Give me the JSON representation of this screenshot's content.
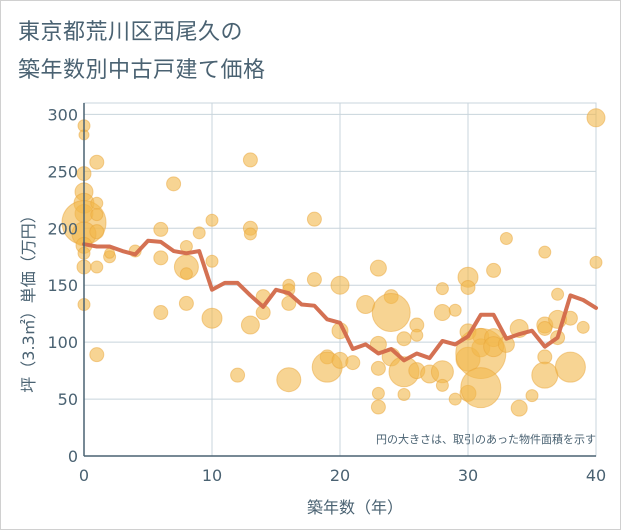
{
  "title_line1": "東京都荒川区西尾久の",
  "title_line2": "築年数別中古戸建て価格",
  "chart_data": {
    "type": "scatter",
    "xlabel": "築年数（年）",
    "ylabel": "坪（3.3㎡）単価（万円）",
    "xlim": [
      0,
      40
    ],
    "ylim": [
      0,
      310
    ],
    "xticks": [
      0,
      10,
      20,
      30,
      40
    ],
    "yticks": [
      0,
      50,
      100,
      150,
      200,
      250,
      300
    ],
    "grid": true,
    "note": "円の大きさは、取引のあった物件面積を示す",
    "colors": {
      "bubble": "#f2b84b",
      "line": "#d2694a",
      "axis": "#4a6272",
      "grid": "#c8d4dc"
    },
    "bubbles": [
      {
        "x": 0,
        "y": 290,
        "r": 6
      },
      {
        "x": 0,
        "y": 282,
        "r": 5
      },
      {
        "x": 0,
        "y": 248,
        "r": 7
      },
      {
        "x": 0,
        "y": 232,
        "r": 9
      },
      {
        "x": 0,
        "y": 222,
        "r": 10
      },
      {
        "x": 0,
        "y": 213,
        "r": 9
      },
      {
        "x": 0,
        "y": 205,
        "r": 22
      },
      {
        "x": 0,
        "y": 195,
        "r": 12
      },
      {
        "x": 0,
        "y": 185,
        "r": 8
      },
      {
        "x": 0,
        "y": 178,
        "r": 6
      },
      {
        "x": 0,
        "y": 166,
        "r": 7
      },
      {
        "x": 0,
        "y": 133,
        "r": 6
      },
      {
        "x": 1,
        "y": 258,
        "r": 7
      },
      {
        "x": 1,
        "y": 222,
        "r": 6
      },
      {
        "x": 1,
        "y": 212,
        "r": 6
      },
      {
        "x": 1,
        "y": 197,
        "r": 7
      },
      {
        "x": 1,
        "y": 166,
        "r": 6
      },
      {
        "x": 1,
        "y": 89,
        "r": 7
      },
      {
        "x": 2,
        "y": 175,
        "r": 6
      },
      {
        "x": 2,
        "y": 178,
        "r": 5
      },
      {
        "x": 4,
        "y": 180,
        "r": 6
      },
      {
        "x": 6,
        "y": 199,
        "r": 7
      },
      {
        "x": 6,
        "y": 174,
        "r": 7
      },
      {
        "x": 6,
        "y": 126,
        "r": 7
      },
      {
        "x": 7,
        "y": 239,
        "r": 7
      },
      {
        "x": 8,
        "y": 184,
        "r": 6
      },
      {
        "x": 8,
        "y": 166,
        "r": 12
      },
      {
        "x": 8,
        "y": 160,
        "r": 6
      },
      {
        "x": 8,
        "y": 134,
        "r": 7
      },
      {
        "x": 9,
        "y": 196,
        "r": 6
      },
      {
        "x": 10,
        "y": 207,
        "r": 6
      },
      {
        "x": 10,
        "y": 171,
        "r": 6
      },
      {
        "x": 10,
        "y": 121,
        "r": 10
      },
      {
        "x": 12,
        "y": 71,
        "r": 7
      },
      {
        "x": 13,
        "y": 260,
        "r": 7
      },
      {
        "x": 13,
        "y": 200,
        "r": 7
      },
      {
        "x": 13,
        "y": 195,
        "r": 6
      },
      {
        "x": 13,
        "y": 115,
        "r": 9
      },
      {
        "x": 14,
        "y": 140,
        "r": 7
      },
      {
        "x": 14,
        "y": 126,
        "r": 7
      },
      {
        "x": 16,
        "y": 150,
        "r": 6
      },
      {
        "x": 16,
        "y": 146,
        "r": 6
      },
      {
        "x": 16,
        "y": 134,
        "r": 7
      },
      {
        "x": 16,
        "y": 67,
        "r": 12
      },
      {
        "x": 18,
        "y": 208,
        "r": 7
      },
      {
        "x": 18,
        "y": 155,
        "r": 7
      },
      {
        "x": 19,
        "y": 87,
        "r": 7
      },
      {
        "x": 19,
        "y": 78,
        "r": 15
      },
      {
        "x": 20,
        "y": 150,
        "r": 9
      },
      {
        "x": 20,
        "y": 110,
        "r": 8
      },
      {
        "x": 20,
        "y": 84,
        "r": 8
      },
      {
        "x": 21,
        "y": 82,
        "r": 7
      },
      {
        "x": 22,
        "y": 133,
        "r": 9
      },
      {
        "x": 23,
        "y": 165,
        "r": 8
      },
      {
        "x": 23,
        "y": 98,
        "r": 8
      },
      {
        "x": 23,
        "y": 77,
        "r": 7
      },
      {
        "x": 23,
        "y": 55,
        "r": 6
      },
      {
        "x": 23,
        "y": 43,
        "r": 7
      },
      {
        "x": 24,
        "y": 140,
        "r": 7
      },
      {
        "x": 24,
        "y": 126,
        "r": 19
      },
      {
        "x": 24,
        "y": 87,
        "r": 9
      },
      {
        "x": 25,
        "y": 103,
        "r": 7
      },
      {
        "x": 25,
        "y": 74,
        "r": 15
      },
      {
        "x": 25,
        "y": 54,
        "r": 6
      },
      {
        "x": 26,
        "y": 115,
        "r": 7
      },
      {
        "x": 26,
        "y": 106,
        "r": 6
      },
      {
        "x": 26,
        "y": 75,
        "r": 8
      },
      {
        "x": 27,
        "y": 72,
        "r": 9
      },
      {
        "x": 28,
        "y": 147,
        "r": 6
      },
      {
        "x": 28,
        "y": 126,
        "r": 8
      },
      {
        "x": 28,
        "y": 74,
        "r": 11
      },
      {
        "x": 28,
        "y": 62,
        "r": 6
      },
      {
        "x": 29,
        "y": 128,
        "r": 6
      },
      {
        "x": 29,
        "y": 50,
        "r": 6
      },
      {
        "x": 30,
        "y": 157,
        "r": 10
      },
      {
        "x": 30,
        "y": 148,
        "r": 7
      },
      {
        "x": 30,
        "y": 109,
        "r": 8
      },
      {
        "x": 30,
        "y": 85,
        "r": 12
      },
      {
        "x": 30,
        "y": 55,
        "r": 8
      },
      {
        "x": 31,
        "y": 105,
        "r": 8
      },
      {
        "x": 31,
        "y": 95,
        "r": 9
      },
      {
        "x": 31,
        "y": 90,
        "r": 25
      },
      {
        "x": 31,
        "y": 60,
        "r": 20
      },
      {
        "x": 32,
        "y": 163,
        "r": 7
      },
      {
        "x": 32,
        "y": 104,
        "r": 9
      },
      {
        "x": 32,
        "y": 96,
        "r": 10
      },
      {
        "x": 33,
        "y": 191,
        "r": 6
      },
      {
        "x": 33,
        "y": 98,
        "r": 8
      },
      {
        "x": 34,
        "y": 112,
        "r": 9
      },
      {
        "x": 34,
        "y": 42,
        "r": 8
      },
      {
        "x": 35,
        "y": 53,
        "r": 6
      },
      {
        "x": 36,
        "y": 179,
        "r": 6
      },
      {
        "x": 36,
        "y": 115,
        "r": 8
      },
      {
        "x": 36,
        "y": 112,
        "r": 7
      },
      {
        "x": 36,
        "y": 87,
        "r": 7
      },
      {
        "x": 36,
        "y": 71,
        "r": 13
      },
      {
        "x": 37,
        "y": 142,
        "r": 6
      },
      {
        "x": 37,
        "y": 120,
        "r": 9
      },
      {
        "x": 37,
        "y": 104,
        "r": 7
      },
      {
        "x": 38,
        "y": 121,
        "r": 7
      },
      {
        "x": 38,
        "y": 78,
        "r": 15
      },
      {
        "x": 39,
        "y": 113,
        "r": 6
      },
      {
        "x": 40,
        "y": 297,
        "r": 9
      },
      {
        "x": 40,
        "y": 170,
        "r": 6
      }
    ],
    "series": [
      {
        "x": [
          0,
          1,
          2,
          3,
          4,
          5,
          6,
          7,
          8,
          9,
          10,
          11,
          12,
          13,
          14,
          15,
          16,
          17,
          18,
          19,
          20,
          21,
          22,
          23,
          24,
          25,
          26,
          27,
          28,
          29,
          30,
          31,
          32,
          33,
          34,
          35,
          36,
          37,
          38,
          39,
          40
        ],
        "y": [
          186,
          184,
          184,
          180,
          177,
          189,
          188,
          180,
          178,
          180,
          146,
          152,
          152,
          141,
          131,
          146,
          143,
          133,
          132,
          120,
          117,
          94,
          98,
          90,
          94,
          84,
          90,
          86,
          101,
          98,
          105,
          124,
          124,
          103,
          107,
          110,
          96,
          104,
          141,
          137,
          130
        ]
      }
    ]
  }
}
